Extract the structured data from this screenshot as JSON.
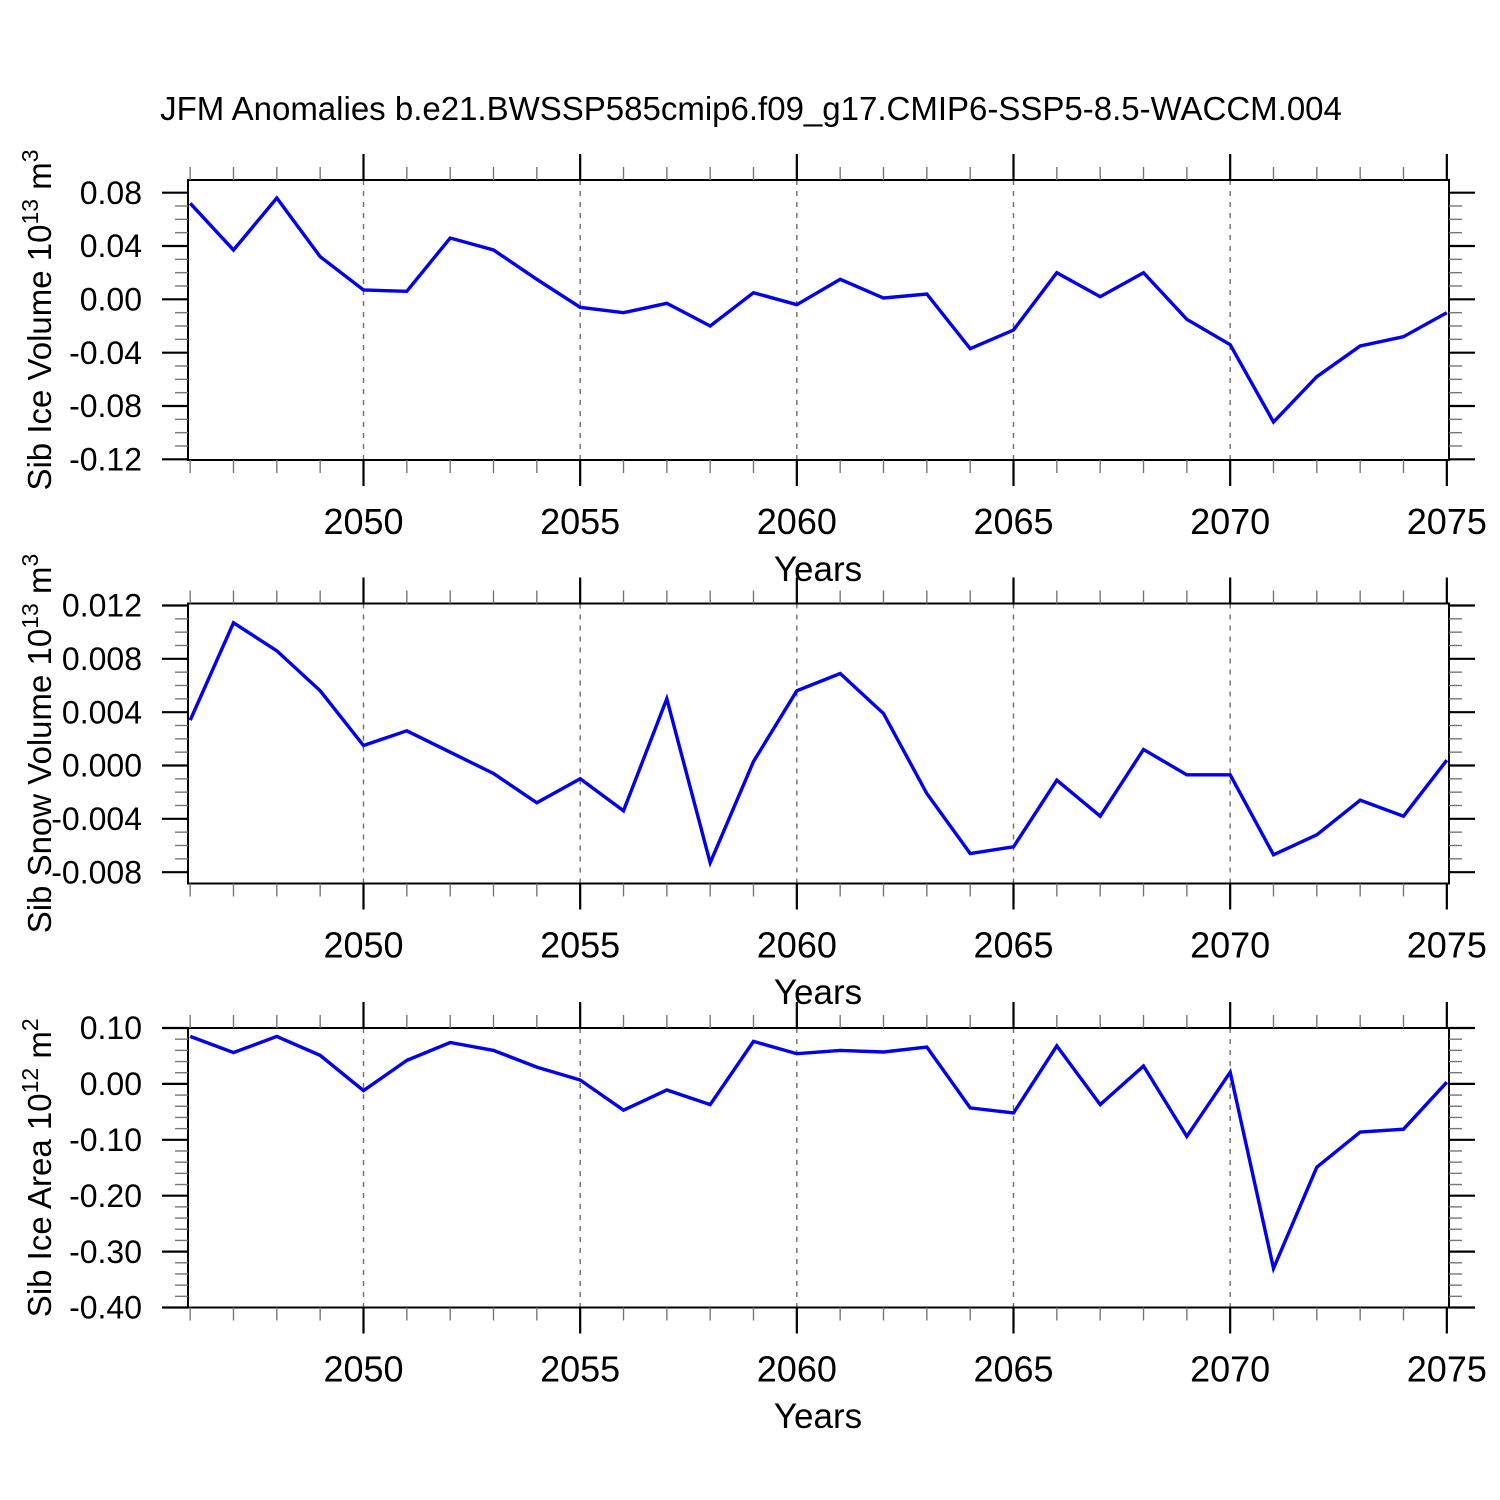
{
  "title": "JFM Anomalies b.e21.BWSSP585cmip6.f09_g17.CMIP6-SSP5-8.5-WACCM.004",
  "colors": {
    "line": "#0000ee",
    "axis": "#000000",
    "grid": "#6e6e6e",
    "minor_tick": "#777777",
    "text": "#000000",
    "background": "#ffffff"
  },
  "x_axis": {
    "label": "Years",
    "years": [
      2046,
      2047,
      2048,
      2049,
      2050,
      2051,
      2052,
      2053,
      2054,
      2055,
      2056,
      2057,
      2058,
      2059,
      2060,
      2061,
      2062,
      2063,
      2064,
      2065,
      2066,
      2067,
      2068,
      2069,
      2070,
      2071,
      2072,
      2073,
      2074,
      2075
    ],
    "xlim": [
      2045.95,
      2075.05
    ],
    "major_ticks": {
      "values": [
        2050,
        2055,
        2060,
        2065,
        2070,
        2075
      ],
      "labels": [
        "2050",
        "2055",
        "2060",
        "2065",
        "2070",
        "2075"
      ]
    },
    "minor_tick_step": 1,
    "gridlines": [
      2050,
      2055,
      2060,
      2065,
      2070
    ]
  },
  "chart_data": [
    {
      "type": "line",
      "id": "sib-ice-volume",
      "ylabel_text": "Sib Ice Volume 10^13 m^3",
      "ylabel_parts": [
        {
          "t": "Sib Ice Volume 10",
          "sup": false
        },
        {
          "t": "13",
          "sup": true
        },
        {
          "t": " m",
          "sup": false
        },
        {
          "t": "3",
          "sup": true
        }
      ],
      "ylim": [
        -0.1205,
        0.0895
      ],
      "yticks": {
        "values": [
          0.08,
          0.04,
          0.0,
          -0.04,
          -0.08,
          -0.12
        ],
        "labels": [
          "0.08",
          "0.04",
          "0.00",
          "-0.04",
          "-0.08",
          "-0.12"
        ]
      },
      "yminor_step": 0.01,
      "grid": "vertical-dashed",
      "legend": "none",
      "x": [
        2046,
        2047,
        2048,
        2049,
        2050,
        2051,
        2052,
        2053,
        2054,
        2055,
        2056,
        2057,
        2058,
        2059,
        2060,
        2061,
        2062,
        2063,
        2064,
        2065,
        2066,
        2067,
        2068,
        2069,
        2070,
        2071,
        2072,
        2073,
        2074,
        2075
      ],
      "values": [
        0.072,
        0.037,
        0.076,
        0.032,
        0.007,
        0.006,
        0.046,
        0.037,
        0.015,
        -0.006,
        -0.01,
        -0.003,
        -0.02,
        0.005,
        -0.004,
        0.015,
        0.001,
        0.004,
        -0.037,
        -0.023,
        0.02,
        0.002,
        0.02,
        -0.015,
        -0.034,
        -0.092,
        -0.058,
        -0.035,
        -0.028,
        -0.01
      ]
    },
    {
      "type": "line",
      "id": "sib-snow-volume",
      "ylabel_text": "Sib Snow Volume 10^13 m^3",
      "ylabel_parts": [
        {
          "t": "Sib Snow Volume 10",
          "sup": false
        },
        {
          "t": "13",
          "sup": true
        },
        {
          "t": " m",
          "sup": false
        },
        {
          "t": "3",
          "sup": true
        }
      ],
      "ylim": [
        -0.00885,
        0.01215
      ],
      "yticks": {
        "values": [
          0.012,
          0.008,
          0.004,
          0.0,
          -0.004,
          -0.008
        ],
        "labels": [
          "0.012",
          "0.008",
          "0.004",
          "0.000",
          "-0.004",
          "-0.008"
        ]
      },
      "yminor_step": 0.001,
      "grid": "vertical-dashed",
      "legend": "none",
      "x": [
        2046,
        2047,
        2048,
        2049,
        2050,
        2051,
        2052,
        2053,
        2054,
        2055,
        2056,
        2057,
        2058,
        2059,
        2060,
        2061,
        2062,
        2063,
        2064,
        2065,
        2066,
        2067,
        2068,
        2069,
        2070,
        2071,
        2072,
        2073,
        2074,
        2075
      ],
      "values": [
        0.0034,
        0.0107,
        0.0086,
        0.0056,
        0.0015,
        0.0026,
        0.001,
        -0.0006,
        -0.0028,
        -0.001,
        -0.0034,
        0.005,
        -0.0073,
        0.0003,
        0.0056,
        0.0069,
        0.0039,
        -0.0021,
        -0.0066,
        -0.0061,
        -0.0011,
        -0.0038,
        0.0012,
        -0.0007,
        -0.0007,
        -0.0067,
        -0.0052,
        -0.0026,
        -0.0038,
        0.0004
      ]
    },
    {
      "type": "line",
      "id": "sib-ice-area",
      "ylabel_text": "Sib Ice Area 10^12 m^2",
      "ylabel_parts": [
        {
          "t": "Sib Ice Area 10",
          "sup": false
        },
        {
          "t": "12",
          "sup": true
        },
        {
          "t": " m",
          "sup": false
        },
        {
          "t": "2",
          "sup": true
        }
      ],
      "ylim": [
        -0.4,
        0.1
      ],
      "yticks": {
        "values": [
          0.1,
          0.0,
          -0.1,
          -0.2,
          -0.3,
          -0.4
        ],
        "labels": [
          "0.10",
          "0.00",
          "-0.10",
          "-0.20",
          "-0.30",
          "-0.40"
        ]
      },
      "yminor_step": 0.02,
      "grid": "vertical-dashed",
      "legend": "none",
      "x": [
        2046,
        2047,
        2048,
        2049,
        2050,
        2051,
        2052,
        2053,
        2054,
        2055,
        2056,
        2057,
        2058,
        2059,
        2060,
        2061,
        2062,
        2063,
        2064,
        2065,
        2066,
        2067,
        2068,
        2069,
        2070,
        2071,
        2072,
        2073,
        2074,
        2075
      ],
      "values": [
        0.085,
        0.056,
        0.085,
        0.051,
        -0.012,
        0.042,
        0.074,
        0.06,
        0.03,
        0.007,
        -0.047,
        -0.011,
        -0.037,
        0.076,
        0.054,
        0.06,
        0.057,
        0.066,
        -0.043,
        -0.052,
        0.068,
        -0.037,
        0.032,
        -0.094,
        0.021,
        -0.33,
        -0.149,
        -0.086,
        -0.081,
        0.003
      ]
    }
  ]
}
